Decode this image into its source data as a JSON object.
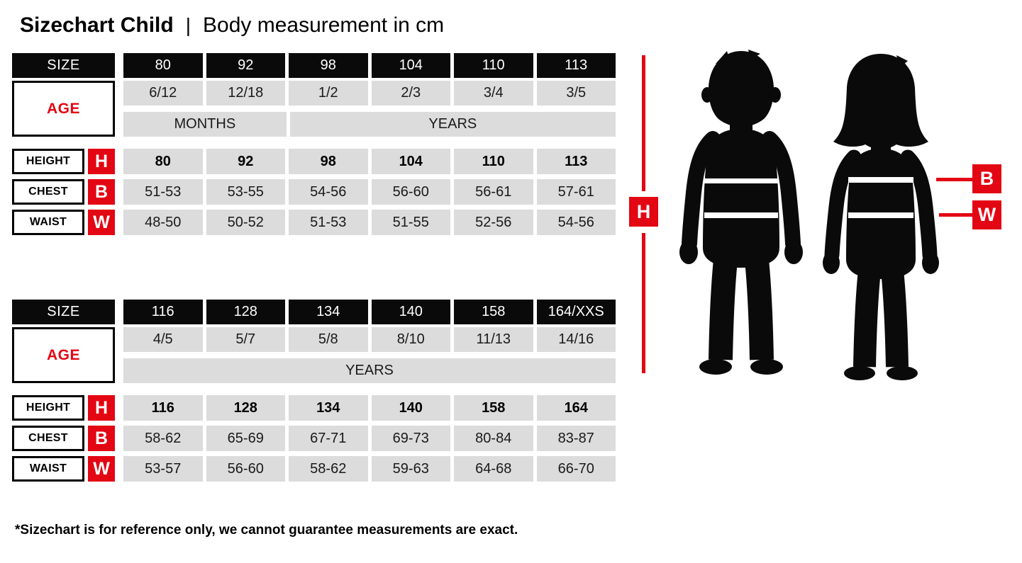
{
  "title": {
    "main": "Sizechart Child",
    "separator": "|",
    "subtitle": "Body measurement in cm"
  },
  "labels": {
    "size": "SIZE",
    "age": "AGE",
    "height": "HEIGHT",
    "chest": "CHEST",
    "waist": "WAIST",
    "h": "H",
    "b": "B",
    "w": "W"
  },
  "colors": {
    "accent_red": "#e30613",
    "header_black": "#0a0a0a",
    "cell_gray": "#dcdcdc"
  },
  "tables": [
    {
      "sizes": [
        "80",
        "92",
        "98",
        "104",
        "110",
        "113"
      ],
      "ages": [
        "6/12",
        "12/18",
        "1/2",
        "2/3",
        "3/4",
        "3/5"
      ],
      "units": [
        {
          "label": "MONTHS",
          "span": 2
        },
        {
          "label": "YEARS",
          "span": 4
        }
      ],
      "height": [
        "80",
        "92",
        "98",
        "104",
        "110",
        "113"
      ],
      "chest": [
        "51-53",
        "53-55",
        "54-56",
        "56-60",
        "56-61",
        "57-61"
      ],
      "waist": [
        "48-50",
        "50-52",
        "51-53",
        "51-55",
        "52-56",
        "54-56"
      ]
    },
    {
      "sizes": [
        "116",
        "128",
        "134",
        "140",
        "158",
        "164/XXS"
      ],
      "ages": [
        "4/5",
        "5/7",
        "5/8",
        "8/10",
        "11/13",
        "14/16"
      ],
      "units": [
        {
          "label": "YEARS",
          "span": 6
        }
      ],
      "height": [
        "116",
        "128",
        "134",
        "140",
        "158",
        "164"
      ],
      "chest": [
        "58-62",
        "65-69",
        "67-71",
        "69-73",
        "80-84",
        "83-87"
      ],
      "waist": [
        "53-57",
        "56-60",
        "58-62",
        "59-63",
        "64-68",
        "66-70"
      ]
    }
  ],
  "footnote": "*Sizechart is for reference only, we cannot guarantee measurements are exact.",
  "chart_data": [
    {
      "type": "table",
      "title": "Sizechart Child — Body measurement in cm (small sizes)",
      "columns": [
        "SIZE 80",
        "SIZE 92",
        "SIZE 98",
        "SIZE 104",
        "SIZE 110",
        "SIZE 113"
      ],
      "rows": {
        "AGE": [
          "6/12 MONTHS",
          "12/18 MONTHS",
          "1/2 YEARS",
          "2/3 YEARS",
          "3/4 YEARS",
          "3/5 YEARS"
        ],
        "HEIGHT (H)": [
          "80",
          "92",
          "98",
          "104",
          "110",
          "113"
        ],
        "CHEST (B)": [
          "51-53",
          "53-55",
          "54-56",
          "56-60",
          "56-61",
          "57-61"
        ],
        "WAIST (W)": [
          "48-50",
          "50-52",
          "51-53",
          "51-55",
          "52-56",
          "54-56"
        ]
      }
    },
    {
      "type": "table",
      "title": "Sizechart Child — Body measurement in cm (large sizes)",
      "columns": [
        "SIZE 116",
        "SIZE 128",
        "SIZE 134",
        "SIZE 140",
        "SIZE 158",
        "SIZE 164/XXS"
      ],
      "rows": {
        "AGE": [
          "4/5 YEARS",
          "5/7 YEARS",
          "5/8 YEARS",
          "8/10 YEARS",
          "11/13 YEARS",
          "14/16 YEARS"
        ],
        "HEIGHT (H)": [
          "116",
          "128",
          "134",
          "140",
          "158",
          "164"
        ],
        "CHEST (B)": [
          "58-62",
          "65-69",
          "67-71",
          "69-73",
          "80-84",
          "83-87"
        ],
        "WAIST (W)": [
          "53-57",
          "56-60",
          "58-62",
          "59-63",
          "64-68",
          "66-70"
        ]
      }
    }
  ]
}
